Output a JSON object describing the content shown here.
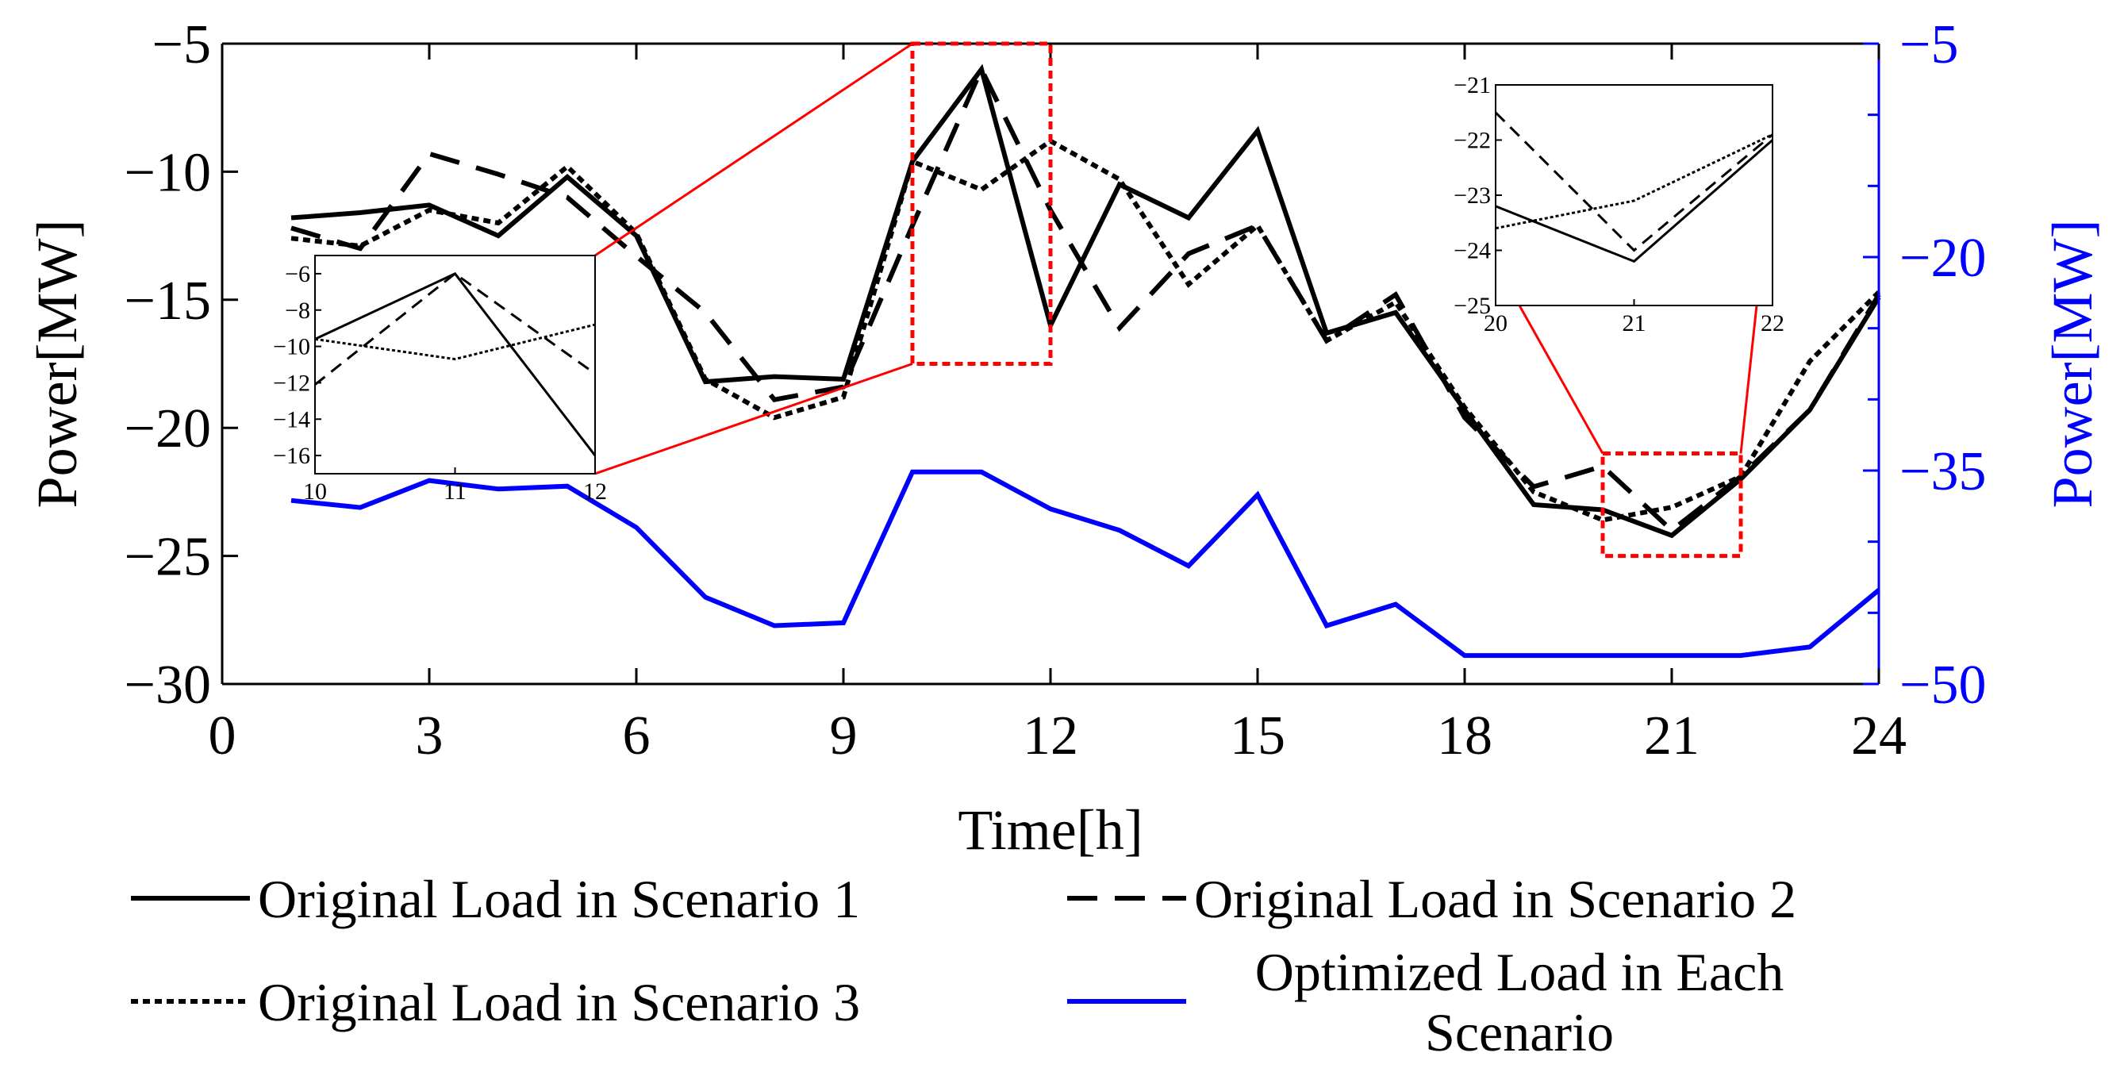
{
  "chart_data": {
    "type": "line",
    "x": [
      1,
      2,
      3,
      4,
      5,
      6,
      7,
      8,
      9,
      10,
      11,
      12,
      13,
      14,
      15,
      16,
      17,
      18,
      19,
      20,
      21,
      22,
      23,
      24
    ],
    "xlim": [
      0,
      24
    ],
    "xticks": [
      0,
      3,
      6,
      9,
      12,
      15,
      18,
      21,
      24
    ],
    "xlabel": "Time[h]",
    "y_left": {
      "label": "Power[MW]",
      "lim": [
        -30,
        -5
      ],
      "ticks": [
        -5,
        -10,
        -15,
        -20,
        -25,
        -30
      ]
    },
    "y_right": {
      "label": "Power[MW]",
      "lim": [
        -50,
        -5
      ],
      "ticks": [
        -5,
        -20,
        -35,
        -50
      ],
      "color": "#0000ff"
    },
    "series": [
      {
        "name": "Original Load in Scenario 1",
        "axis": "left",
        "style": "solid",
        "color": "#000000",
        "values": [
          -11.8,
          -11.6,
          -11.3,
          -12.5,
          -10.2,
          -12.5,
          -18.2,
          -18.0,
          -18.1,
          -9.6,
          -6.0,
          -16.0,
          -10.5,
          -11.8,
          -8.4,
          -16.3,
          -15.5,
          -19.3,
          -23.0,
          -23.2,
          -24.2,
          -22.0,
          -19.3,
          -14.9
        ]
      },
      {
        "name": "Original Load in Scenario 2",
        "axis": "left",
        "style": "dashed",
        "color": "#000000",
        "values": [
          -12.2,
          -13.0,
          -9.3,
          -10.1,
          -11.0,
          -13.3,
          -15.5,
          -18.9,
          -18.4,
          -12.1,
          -6.0,
          -11.5,
          -16.1,
          -13.2,
          -12.1,
          -16.6,
          -14.8,
          -19.6,
          -22.3,
          -21.5,
          -24.0,
          -21.9,
          -19.3,
          -14.8
        ]
      },
      {
        "name": "Original Load in Scenario 3",
        "axis": "left",
        "style": "dotted",
        "color": "#000000",
        "values": [
          -12.6,
          -12.9,
          -11.5,
          -12.0,
          -9.8,
          -12.4,
          -18.1,
          -19.6,
          -18.8,
          -9.6,
          -10.7,
          -8.8,
          -10.3,
          -14.4,
          -12.1,
          -16.6,
          -15.1,
          -19.2,
          -22.5,
          -23.6,
          -23.1,
          -21.9,
          -17.4,
          -14.7
        ]
      },
      {
        "name": "Optimized Load in Each Scenario",
        "axis": "right",
        "style": "solid",
        "color": "#0000ff",
        "values": [
          -37.1,
          -37.6,
          -35.7,
          -36.3,
          -36.1,
          -39.0,
          -43.9,
          -45.9,
          -45.7,
          -35.1,
          -35.1,
          -37.7,
          -39.2,
          -41.7,
          -36.7,
          -45.9,
          -44.4,
          -48.0,
          -48.0,
          -48.0,
          -48.0,
          -48.0,
          -47.4,
          -43.4
        ]
      }
    ],
    "insets": [
      {
        "xlim": [
          10,
          12
        ],
        "ylim": [
          -17,
          -5
        ],
        "xticks": [
          10,
          11,
          12
        ],
        "yticks": [
          -6,
          -8,
          -10,
          -12,
          -14,
          -16
        ]
      },
      {
        "xlim": [
          20,
          22
        ],
        "ylim": [
          -25,
          -21
        ],
        "xticks": [
          20,
          21,
          22
        ],
        "yticks": [
          -21,
          -22,
          -23,
          -24,
          -25
        ]
      }
    ],
    "zoom_regions": [
      {
        "xlim": [
          10,
          12
        ],
        "ylim": [
          -17.5,
          -5
        ]
      },
      {
        "xlim": [
          20,
          22
        ],
        "ylim": [
          -25,
          -21
        ]
      }
    ],
    "legend": {
      "position": "bottom",
      "entries": [
        [
          "Original Load in Scenario 1"
        ],
        [
          "Original Load in Scenario 2"
        ],
        [
          "Original Load in Scenario 3"
        ],
        [
          "Optimized Load in Each",
          "Scenario"
        ]
      ]
    }
  }
}
